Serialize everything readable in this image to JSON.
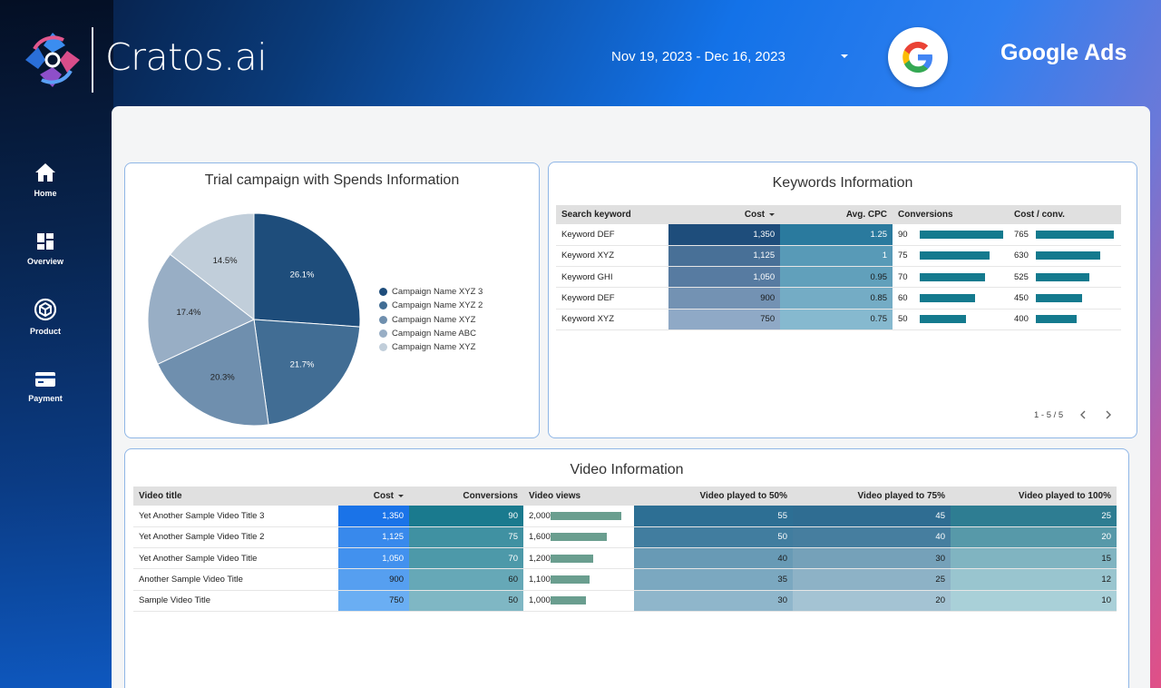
{
  "brand": {
    "name": "Cratos.ai"
  },
  "header": {
    "date_range": "Nov 19, 2023 - Dec 16, 2023",
    "platform": "Google Ads"
  },
  "nav": [
    {
      "label": "Home",
      "icon": "home-icon"
    },
    {
      "label": "Overview",
      "icon": "dashboard-icon"
    },
    {
      "label": "Product",
      "icon": "box-icon"
    },
    {
      "label": "Payment",
      "icon": "credit-card-icon"
    }
  ],
  "colors": {
    "pie": [
      "#1e4d7b",
      "#416d94",
      "#6f8fae",
      "#98aec5",
      "#c1ceda"
    ],
    "bar": "#147a8e"
  },
  "pie_card": {
    "title": "Trial campaign with Spends Information",
    "chart_data": {
      "type": "pie",
      "slices": [
        {
          "label": "Campaign Name XYZ 3",
          "value": 26.1,
          "text": "26.1%"
        },
        {
          "label": "Campaign Name XYZ 2",
          "value": 21.7,
          "text": "21.7%"
        },
        {
          "label": "Campaign Name XYZ",
          "value": 20.3,
          "text": "20.3%"
        },
        {
          "label": "Campaign Name ABC",
          "value": 17.4,
          "text": "17.4%"
        },
        {
          "label": "Campaign Name XYZ",
          "value": 14.5,
          "text": "14.5%"
        }
      ]
    }
  },
  "keywords": {
    "title": "Keywords Information",
    "headers": [
      "Search keyword",
      "Cost",
      "Avg. CPC",
      "Conversions",
      "Cost / conv."
    ],
    "rows": [
      {
        "keyword": "Keyword DEF",
        "cost": "1,350",
        "cpc": "1.25",
        "conv": "90",
        "cpconv": "765"
      },
      {
        "keyword": "Keyword XYZ",
        "cost": "1,125",
        "cpc": "1",
        "conv": "75",
        "cpconv": "630"
      },
      {
        "keyword": "Keyword GHI",
        "cost": "1,050",
        "cpc": "0.95",
        "conv": "70",
        "cpconv": "525"
      },
      {
        "keyword": "Keyword DEF",
        "cost": "900",
        "cpc": "0.85",
        "conv": "60",
        "cpconv": "450"
      },
      {
        "keyword": "Keyword XYZ",
        "cost": "750",
        "cpc": "0.75",
        "conv": "50",
        "cpconv": "400"
      }
    ],
    "pager": "1 - 5 / 5"
  },
  "videos": {
    "title": "Video Information",
    "headers": [
      "Video title",
      "Cost",
      "Conversions",
      "Video views",
      "Video played to 50%",
      "Video played to 75%",
      "Video played to 100%"
    ],
    "rows": [
      {
        "title": "Yet Another Sample Video Title 3",
        "cost": "1,350",
        "conv": "90",
        "views": "2,000",
        "p50": "55",
        "p75": "45",
        "p100": "25"
      },
      {
        "title": "Yet Another Sample Video Title 2",
        "cost": "1,125",
        "conv": "75",
        "views": "1,600",
        "p50": "50",
        "p75": "40",
        "p100": "20"
      },
      {
        "title": "Yet Another Sample Video Title",
        "cost": "1,050",
        "conv": "70",
        "views": "1,200",
        "p50": "40",
        "p75": "30",
        "p100": "15"
      },
      {
        "title": "Another Sample Video Title",
        "cost": "900",
        "conv": "60",
        "views": "1,100",
        "p50": "35",
        "p75": "25",
        "p100": "12"
      },
      {
        "title": "Sample Video Title",
        "cost": "750",
        "conv": "50",
        "views": "1,000",
        "p50": "30",
        "p75": "20",
        "p100": "10"
      }
    ]
  }
}
